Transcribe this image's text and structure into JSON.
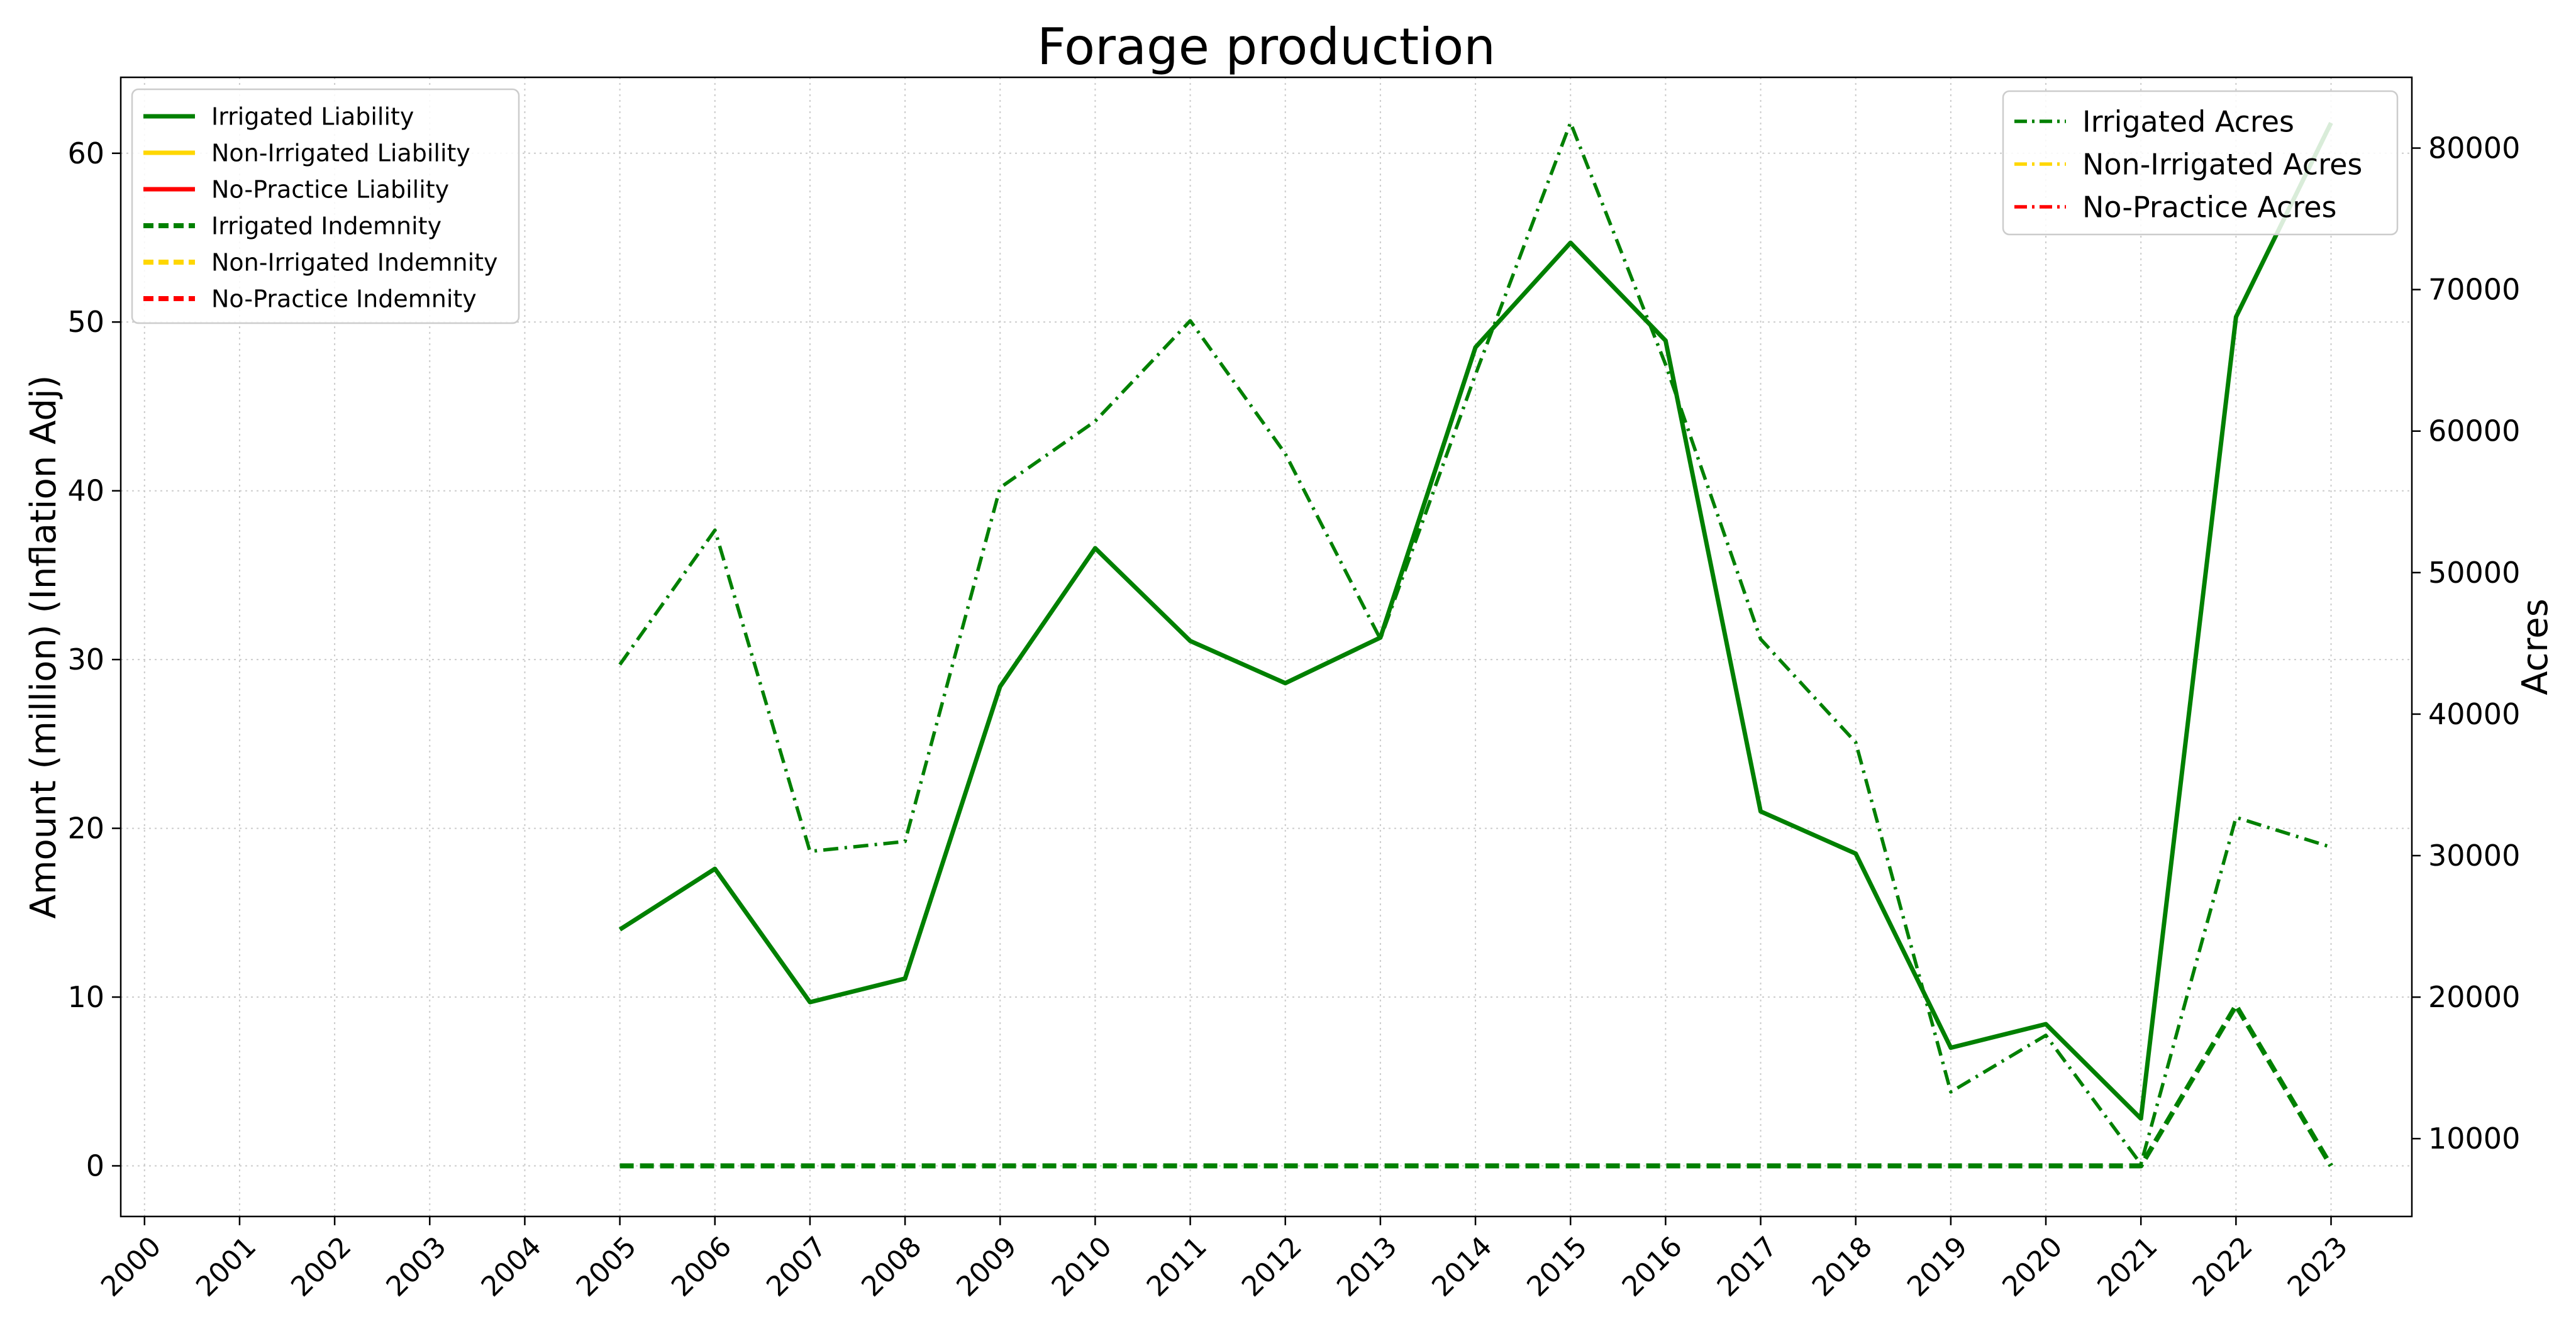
{
  "chart_data": {
    "type": "line",
    "title": "Forage production",
    "xlabel": "",
    "ylabel": "Amount (million) (Inflation Adj)",
    "ylabel_right": "Acres",
    "x_ticks": [
      "2000",
      "2001",
      "2002",
      "2003",
      "2004",
      "2005",
      "2006",
      "2007",
      "2008",
      "2009",
      "2010",
      "2011",
      "2012",
      "2013",
      "2014",
      "2015",
      "2016",
      "2017",
      "2018",
      "2019",
      "2020",
      "2021",
      "2022",
      "2023"
    ],
    "y_ticks": [
      0,
      10,
      20,
      30,
      40,
      50,
      60
    ],
    "y2_ticks": [
      10000,
      20000,
      30000,
      40000,
      50000,
      60000,
      70000,
      80000
    ],
    "xlim": [
      1999.75,
      2023.85
    ],
    "ylim": [
      -3.0,
      64.5
    ],
    "y2lim": [
      4500,
      85000
    ],
    "grid": true,
    "legend_left": {
      "placement": "upper-left",
      "entries": [
        {
          "label": "Irrigated Liability",
          "color": "#008000",
          "style": "solid"
        },
        {
          "label": "Non-Irrigated Liability",
          "color": "#FFD700",
          "style": "solid"
        },
        {
          "label": "No-Practice Liability",
          "color": "#FF0000",
          "style": "solid"
        },
        {
          "label": "Irrigated Indemnity",
          "color": "#008000",
          "style": "dashed"
        },
        {
          "label": "Non-Irrigated Indemnity",
          "color": "#FFD700",
          "style": "dashed"
        },
        {
          "label": "No-Practice Indemnity",
          "color": "#FF0000",
          "style": "dashed"
        }
      ]
    },
    "legend_right": {
      "placement": "upper-right",
      "entries": [
        {
          "label": "Irrigated Acres",
          "color": "#008000",
          "style": "dashdot"
        },
        {
          "label": "Non-Irrigated Acres",
          "color": "#FFD700",
          "style": "dashdot"
        },
        {
          "label": "No-Practice Acres",
          "color": "#FF0000",
          "style": "dashdot"
        }
      ]
    },
    "series": [
      {
        "name": "Irrigated Liability",
        "axis": "left",
        "color": "#008000",
        "style": "solid",
        "x": [
          2005,
          2006,
          2007,
          2008,
          2009,
          2010,
          2011,
          2012,
          2013,
          2014,
          2015,
          2016,
          2017,
          2018,
          2019,
          2020,
          2021,
          2022,
          2023
        ],
        "values": [
          14.0,
          17.6,
          9.7,
          11.1,
          28.4,
          36.6,
          31.1,
          28.6,
          31.3,
          48.5,
          54.7,
          48.9,
          21.0,
          18.5,
          7.0,
          8.4,
          2.8,
          50.3,
          61.8
        ]
      },
      {
        "name": "Irrigated Indemnity",
        "axis": "left",
        "color": "#008000",
        "style": "dashed",
        "x": [
          2005,
          2006,
          2007,
          2008,
          2009,
          2010,
          2011,
          2012,
          2013,
          2014,
          2015,
          2016,
          2017,
          2018,
          2019,
          2020,
          2021,
          2022,
          2023
        ],
        "values": [
          0,
          0,
          0,
          0,
          0,
          0,
          0,
          0,
          0,
          0,
          0,
          0,
          0,
          0,
          0,
          0,
          0,
          9.5,
          0.0
        ]
      },
      {
        "name": "Irrigated Acres",
        "axis": "right",
        "color": "#008000",
        "style": "dashdot",
        "x": [
          2005,
          2006,
          2007,
          2008,
          2009,
          2010,
          2011,
          2012,
          2013,
          2014,
          2015,
          2016,
          2017,
          2018,
          2019,
          2020,
          2021,
          2022,
          2023
        ],
        "values": [
          43500,
          53000,
          30300,
          31000,
          56000,
          60700,
          67800,
          58400,
          45300,
          64000,
          81800,
          64700,
          45300,
          38000,
          13300,
          17300,
          8200,
          32700,
          30600
        ]
      }
    ]
  }
}
